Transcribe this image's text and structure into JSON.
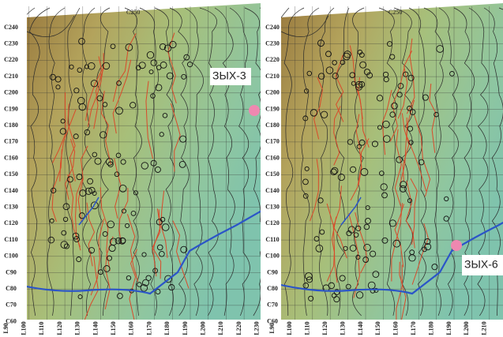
{
  "panels": [
    {
      "top_label": "C250",
      "y_labels": [
        "C240",
        "C230",
        "C220",
        "C210",
        "C200",
        "C190",
        "C180",
        "C170",
        "C160",
        "C150",
        "C140",
        "C130",
        "C120",
        "C110",
        "C100",
        "C90",
        "C80",
        "C70",
        "C60"
      ],
      "x_labels": [
        "L90",
        "L100",
        "L110",
        "L120",
        "L130",
        "L140",
        "L150",
        "L160",
        "L170",
        "L180",
        "L190",
        "L200",
        "L210",
        "L220",
        "L230"
      ],
      "well_label": "ЗЫХ-3"
    },
    {
      "top_label": "C250",
      "y_labels": [
        "C240",
        "C230",
        "C220",
        "C210",
        "C200",
        "C190",
        "C180",
        "C170",
        "C160",
        "C150",
        "C140",
        "C130",
        "C120",
        "C110",
        "C100",
        "C90",
        "C80",
        "C70",
        "C60"
      ],
      "x_labels": [
        "L90",
        "L100",
        "L110",
        "L120",
        "L130",
        "L140",
        "L150",
        "L160",
        "L170",
        "L180",
        "L190",
        "L200",
        "L210"
      ],
      "well_label": "ЗЫХ-6"
    }
  ]
}
